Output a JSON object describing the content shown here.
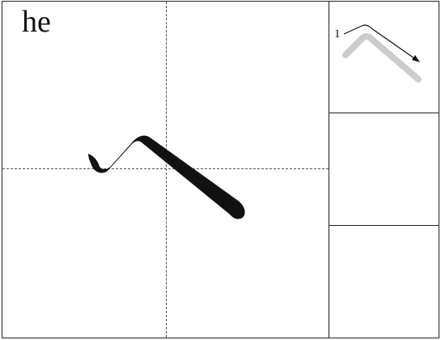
{
  "pinyin": "he",
  "stroke_order": {
    "steps": [
      {
        "number": "1"
      }
    ]
  },
  "colors": {
    "ink": "#111111",
    "guide_stroke": "#cccccc",
    "grid_line": "#222222"
  }
}
